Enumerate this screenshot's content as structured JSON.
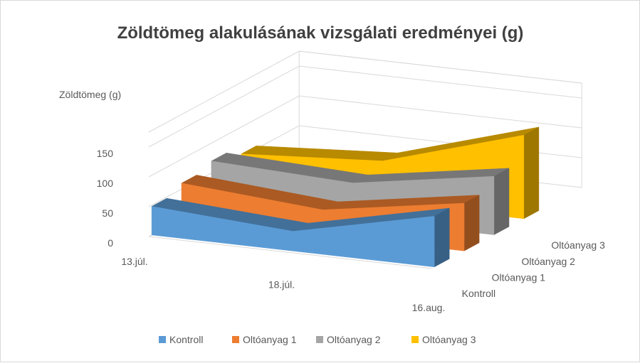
{
  "chart_data": {
    "type": "area",
    "style": "3d-area",
    "title": "Zöldtömeg alakulásának vizsgálati eredményei (g)",
    "ylabel": "Zöldtömeg (g)",
    "xlabel": "",
    "categories": [
      "13.júl.",
      "18.júl.",
      "16.aug."
    ],
    "y_ticks": [
      0,
      50,
      100,
      150
    ],
    "ylim": [
      0,
      175
    ],
    "series": [
      {
        "name": "Kontroll",
        "color": "#5b9bd5",
        "values": [
          48,
          33,
          85
        ]
      },
      {
        "name": "Oltóanyag 1",
        "color": "#ed7d31",
        "values": [
          60,
          42,
          80
        ]
      },
      {
        "name": "Oltóanyag 2",
        "color": "#a5a5a5",
        "values": [
          70,
          60,
          98
        ]
      },
      {
        "name": "Oltóanyag 3",
        "color": "#ffc000",
        "values": [
          55,
          70,
          140
        ]
      }
    ],
    "legend_position": "bottom",
    "grid": true
  }
}
